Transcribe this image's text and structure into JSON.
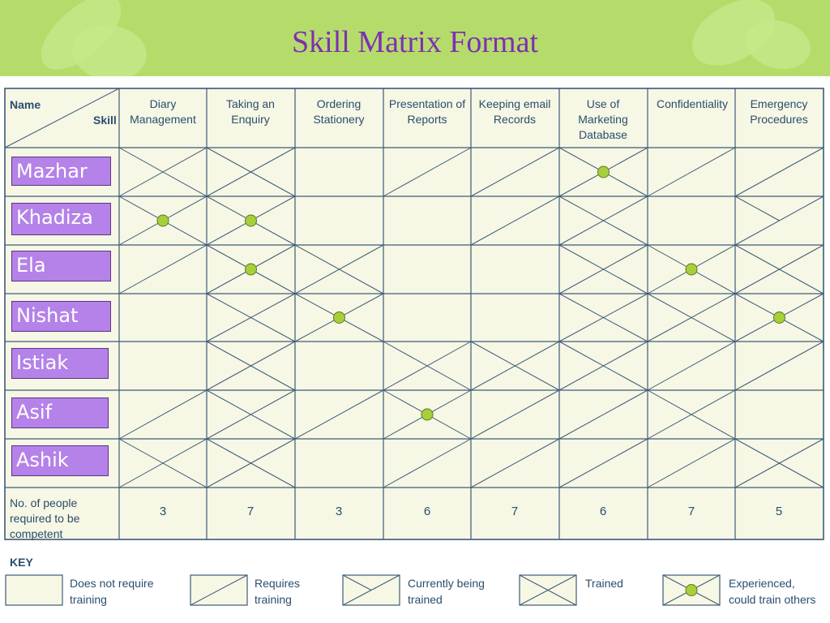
{
  "title": "Skill Matrix Format",
  "corner": {
    "name_label": "Name",
    "skill_label": "Skill"
  },
  "skills": [
    "Diary Management",
    "Taking an Enquiry",
    "Ordering Stationery",
    "Presentation of Reports",
    "Keeping email Records",
    "Use of Marketing Database",
    "Confidentiality",
    "Emergency Procedures"
  ],
  "people": [
    "Mazhar",
    "Khadiza",
    "Ela",
    "Nishat",
    "Istiak",
    "Asif",
    "Ashik"
  ],
  "matrix": [
    [
      3,
      3,
      0,
      1,
      1,
      4,
      1,
      1
    ],
    [
      4,
      4,
      0,
      0,
      1,
      3,
      0,
      2
    ],
    [
      1,
      4,
      3,
      0,
      0,
      3,
      4,
      3
    ],
    [
      0,
      3,
      4,
      0,
      0,
      3,
      3,
      4
    ],
    [
      0,
      3,
      0,
      3,
      3,
      3,
      1,
      1
    ],
    [
      1,
      3,
      1,
      4,
      1,
      1,
      3,
      0
    ],
    [
      3,
      3,
      0,
      1,
      1,
      1,
      1,
      3
    ]
  ],
  "footer": {
    "label": "No. of people required to be competent",
    "values": [
      "3",
      "7",
      "3",
      "6",
      "7",
      "6",
      "7",
      "5"
    ]
  },
  "key": {
    "title": "KEY",
    "items": [
      {
        "state": 0,
        "label": "Does not require training"
      },
      {
        "state": 1,
        "label": "Requires training"
      },
      {
        "state": 2,
        "label": "Currently being trained"
      },
      {
        "state": 3,
        "label": "Trained"
      },
      {
        "state": 4,
        "label": "Experienced, could train others"
      }
    ]
  },
  "colors": {
    "header_bg": "#b5dc6b",
    "title": "#7e2fb3",
    "grid_bg": "#f6f7e4",
    "grid_line": "#3e5b78",
    "name_box": "#b482e8",
    "dot": "#a7cf3b"
  }
}
